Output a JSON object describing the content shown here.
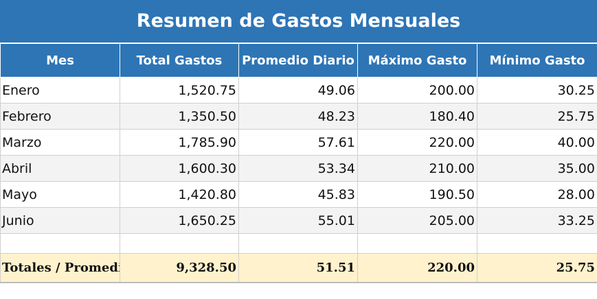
{
  "header": {
    "title": "Resumen de Gastos Mensuales"
  },
  "table": {
    "columns": [
      "Mes",
      "Total Gastos",
      "Promedio Diario",
      "Máximo Gasto",
      "Mínimo Gasto"
    ],
    "rows": [
      [
        "Enero",
        "1,520.75",
        "49.06",
        "200.00",
        "30.25"
      ],
      [
        "Febrero",
        "1,350.50",
        "48.23",
        "180.40",
        "25.75"
      ],
      [
        "Marzo",
        "1,785.90",
        "57.61",
        "220.00",
        "40.00"
      ],
      [
        "Abril",
        "1,600.30",
        "53.34",
        "210.00",
        "35.00"
      ],
      [
        "Mayo",
        "1,420.80",
        "45.83",
        "190.50",
        "28.00"
      ],
      [
        "Junio",
        "1,650.25",
        "55.01",
        "205.00",
        "33.25"
      ]
    ],
    "totals": [
      "Totales / Promedio",
      "9,328.50",
      "51.51",
      "220.00",
      "25.75"
    ]
  }
}
